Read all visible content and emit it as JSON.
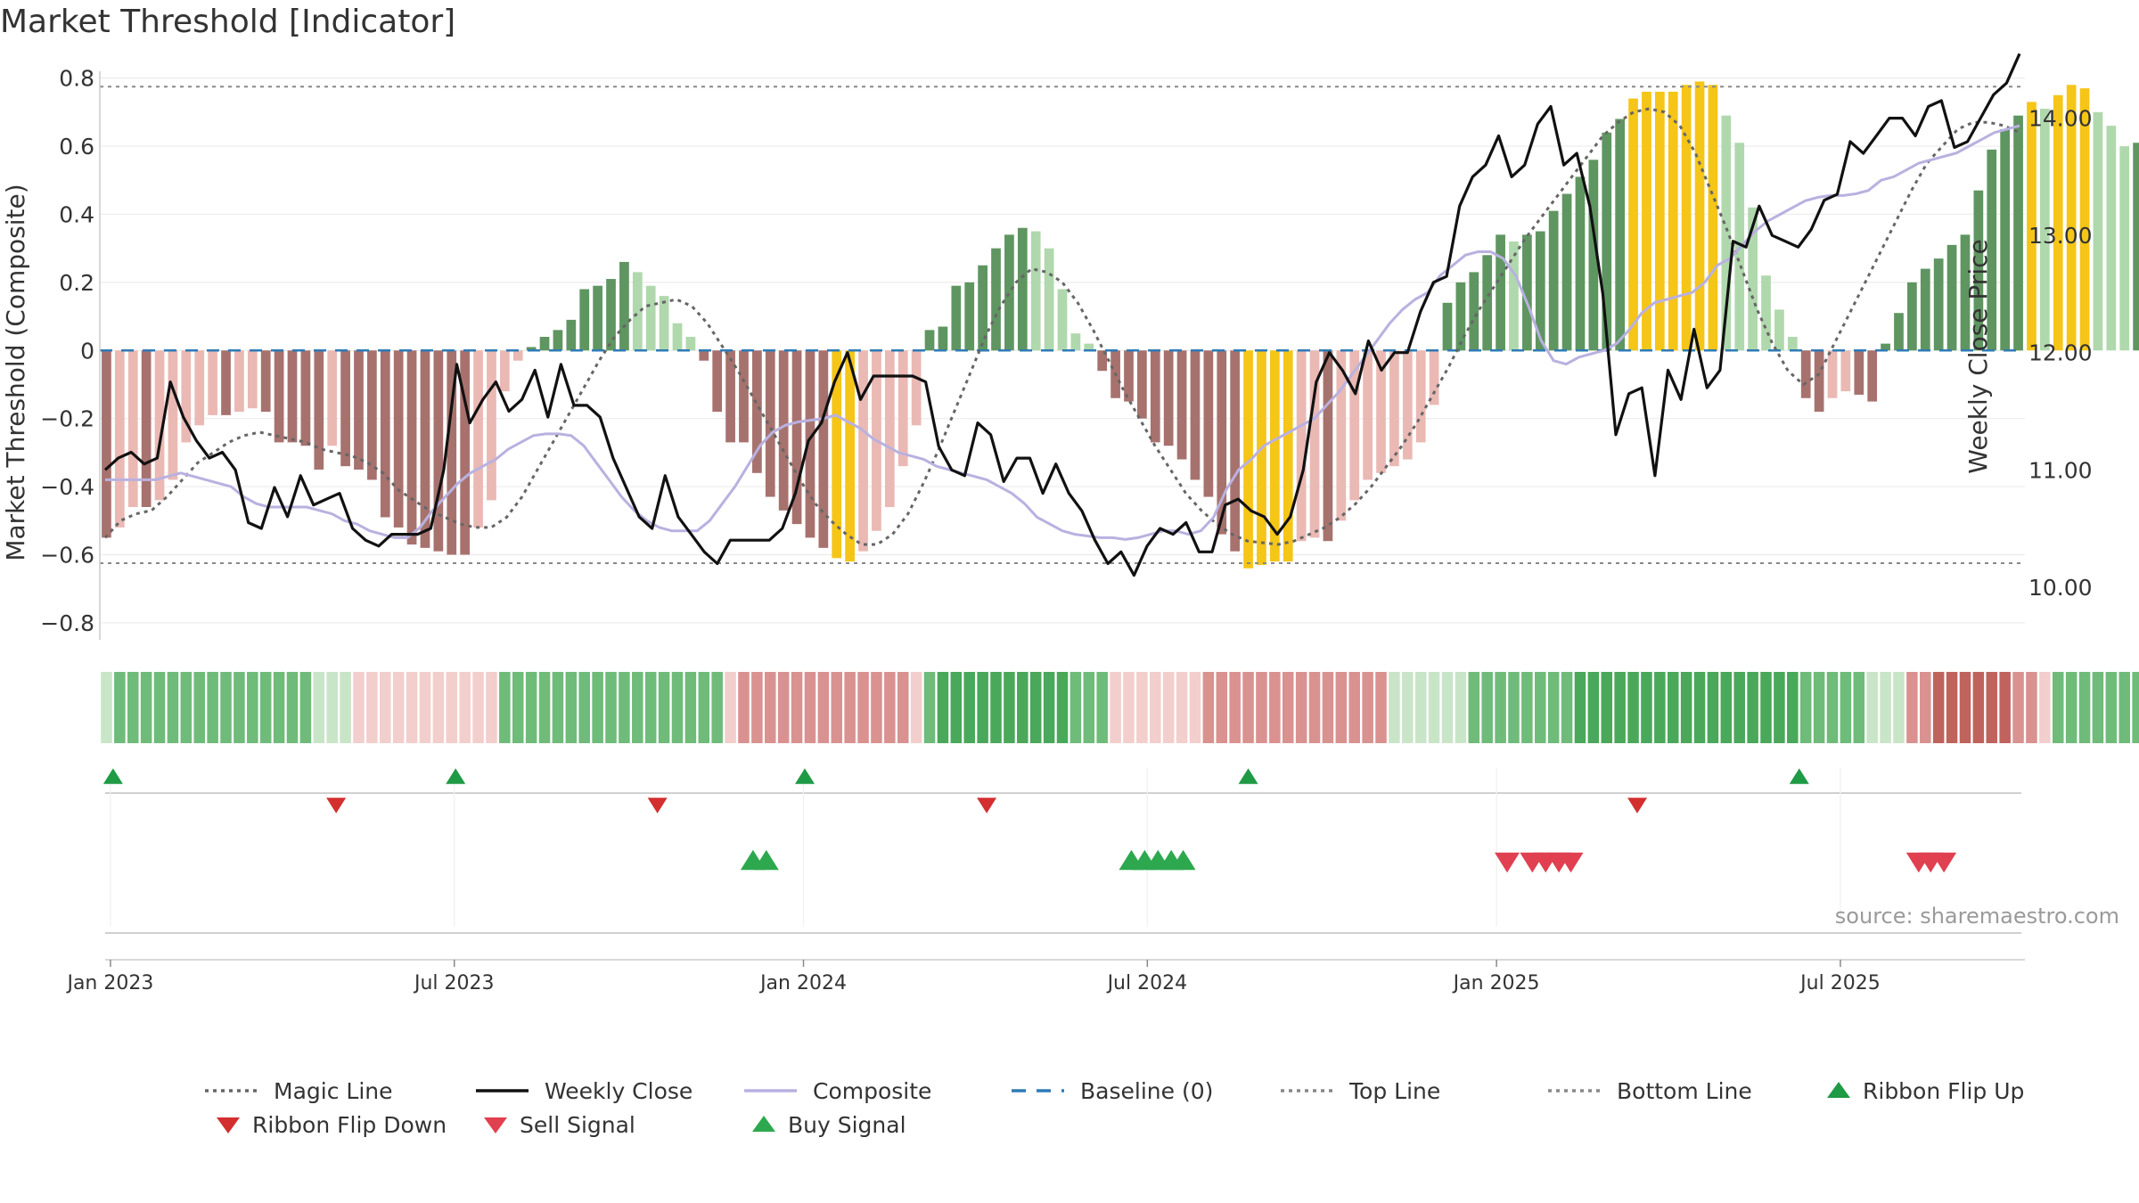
{
  "chart_data": {
    "type": "line",
    "title": "Market Threshold [Indicator]",
    "ylabel_left": "Market Threshold (Composite)",
    "ylabel_right": "Weekly Close Price",
    "ylim_left": [
      -0.85,
      0.82
    ],
    "ylim_right": [
      9.55,
      14.4
    ],
    "yticks_left": [
      {
        "v": 0.8,
        "label": "0.8"
      },
      {
        "v": 0.6,
        "label": "0.6"
      },
      {
        "v": 0.4,
        "label": "0.4"
      },
      {
        "v": 0.2,
        "label": "0.2"
      },
      {
        "v": 0,
        "label": "0"
      },
      {
        "v": -0.2,
        "label": "−0.2"
      },
      {
        "v": -0.4,
        "label": "−0.4"
      },
      {
        "v": -0.6,
        "label": "−0.6"
      },
      {
        "v": -0.8,
        "label": "−0.8"
      }
    ],
    "yticks_right": [
      {
        "v": 14,
        "label": "14.00"
      },
      {
        "v": 13,
        "label": "13.00"
      },
      {
        "v": 12,
        "label": "12.00"
      },
      {
        "v": 11,
        "label": "11.00"
      },
      {
        "v": 10,
        "label": "10.00"
      }
    ],
    "xticks": [
      {
        "w": 0.3,
        "label": "Jan 2023"
      },
      {
        "w": 26.2,
        "label": "Jul 2023"
      },
      {
        "w": 52.5,
        "label": "Jan 2024"
      },
      {
        "w": 78.4,
        "label": "Jul 2024"
      },
      {
        "w": 104.7,
        "label": "Jan 2025"
      },
      {
        "w": 130.6,
        "label": "Jul 2025"
      }
    ],
    "top_line": 0.775,
    "bottom_line": -0.625,
    "source": "source: sharemaestro.com",
    "weeks": 145,
    "composite_bars": [
      -0.55,
      -0.52,
      -0.46,
      -0.46,
      -0.44,
      -0.38,
      -0.27,
      -0.22,
      -0.19,
      -0.19,
      -0.18,
      -0.17,
      -0.18,
      -0.27,
      -0.27,
      -0.28,
      -0.35,
      -0.28,
      -0.34,
      -0.35,
      -0.38,
      -0.49,
      -0.52,
      -0.57,
      -0.58,
      -0.59,
      -0.6,
      -0.6,
      -0.52,
      -0.44,
      -0.12,
      -0.03,
      0.01,
      0.04,
      0.06,
      0.09,
      0.18,
      0.19,
      0.21,
      0.26,
      0.23,
      0.19,
      0.16,
      0.08,
      0.04,
      -0.03,
      -0.18,
      -0.27,
      -0.27,
      -0.36,
      -0.43,
      -0.47,
      -0.51,
      -0.55,
      -0.58,
      -0.61,
      -0.62,
      -0.59,
      -0.53,
      -0.46,
      -0.34,
      -0.22,
      0.06,
      0.07,
      0.19,
      0.2,
      0.25,
      0.3,
      0.34,
      0.36,
      0.35,
      0.3,
      0.18,
      0.05,
      0.02,
      -0.06,
      -0.14,
      -0.15,
      -0.2,
      -0.27,
      -0.28,
      -0.32,
      -0.38,
      -0.43,
      -0.54,
      -0.59,
      -0.64,
      -0.63,
      -0.62,
      -0.62,
      -0.56,
      -0.55,
      -0.56,
      -0.5,
      -0.44,
      -0.38,
      -0.36,
      -0.34,
      -0.32,
      -0.27,
      -0.16,
      0.14,
      0.2,
      0.23,
      0.28,
      0.34,
      0.32,
      0.34,
      0.35,
      0.41,
      0.46,
      0.51,
      0.56,
      0.64,
      0.68,
      0.74,
      0.76,
      0.76,
      0.76,
      0.78,
      0.79,
      0.78,
      0.69,
      0.61,
      0.42,
      0.22,
      0.12,
      0.04,
      -0.14,
      -0.18,
      -0.14,
      -0.12,
      -0.13,
      -0.15,
      0.02,
      0.11,
      0.2,
      0.24,
      0.27,
      0.31,
      0.34,
      0.47,
      0.59,
      0.65,
      0.69,
      0.73,
      0.71,
      0.75,
      0.78,
      0.77,
      0.7,
      0.66,
      0.6,
      0.61,
      0.61
    ],
    "ribbon": [
      1,
      2,
      2,
      2,
      2,
      2,
      2,
      2,
      2,
      2,
      2,
      2,
      2,
      2,
      2,
      2,
      1,
      1,
      1,
      -1,
      -1,
      -1,
      -1,
      -1,
      -1,
      -1,
      -1,
      -1,
      -1,
      -1,
      2,
      2,
      2,
      2,
      2,
      2,
      2,
      2,
      2,
      2,
      2,
      2,
      2,
      2,
      2,
      2,
      2,
      -1,
      -2,
      -2,
      -2,
      -2,
      -2,
      -2,
      -2,
      -2,
      -2,
      -2,
      -2,
      -2,
      -2,
      -1,
      2,
      3,
      3,
      3,
      3,
      3,
      3,
      3,
      3,
      3,
      3,
      2,
      2,
      2,
      -1,
      -1,
      -1,
      -1,
      -1,
      -1,
      -1,
      -2,
      -2,
      -2,
      -2,
      -2,
      -2,
      -2,
      -2,
      -2,
      -2,
      -2,
      -2,
      -2,
      -2,
      1,
      1,
      1,
      1,
      1,
      1,
      2,
      2,
      2,
      2,
      2,
      2,
      2,
      2,
      3,
      3,
      3,
      3,
      3,
      3,
      3,
      3,
      3,
      3,
      3,
      3,
      3,
      3,
      3,
      3,
      3,
      2,
      2,
      2,
      2,
      2,
      1,
      1,
      1,
      -2,
      -2,
      -3,
      -3,
      -3,
      -3,
      -3,
      -3,
      -2,
      -2,
      -1,
      2,
      2,
      2,
      2,
      2,
      2,
      2,
      2,
      2,
      2,
      2,
      2,
      2,
      2,
      2,
      2,
      2,
      2,
      2,
      1,
      1,
      1,
      1,
      1,
      1
    ],
    "series": [
      {
        "name": "Weekly Close",
        "values": [
          11.0,
          11.1,
          11.15,
          11.05,
          11.1,
          11.75,
          11.45,
          11.25,
          11.1,
          11.15,
          11.0,
          10.55,
          10.5,
          10.85,
          10.6,
          10.95,
          10.7,
          10.75,
          10.8,
          10.5,
          10.4,
          10.35,
          10.45,
          10.45,
          10.45,
          10.5,
          11.0,
          11.9,
          11.4,
          11.6,
          11.75,
          11.5,
          11.6,
          11.85,
          11.45,
          11.9,
          11.55,
          11.55,
          11.45,
          11.1,
          10.85,
          10.6,
          10.5,
          10.95,
          10.6,
          10.45,
          10.3,
          10.2,
          10.4,
          10.4,
          10.4,
          10.4,
          10.5,
          10.8,
          11.25,
          11.4,
          11.75,
          12.0,
          11.6,
          11.8,
          11.8,
          11.8,
          11.8,
          11.75,
          11.2,
          11.0,
          10.95,
          11.4,
          11.3,
          10.9,
          11.1,
          11.1,
          10.8,
          11.05,
          10.8,
          10.65,
          10.4,
          10.2,
          10.3,
          10.1,
          10.35,
          10.5,
          10.45,
          10.55,
          10.3,
          10.3,
          10.7,
          10.75,
          10.65,
          10.6,
          10.45,
          10.6,
          11.0,
          11.75,
          12.0,
          11.85,
          11.65,
          12.1,
          11.85,
          12.0,
          12.0,
          12.35,
          12.6,
          12.65,
          13.25,
          13.5,
          13.6,
          13.85,
          13.5,
          13.6,
          13.95,
          14.1,
          13.6,
          13.7,
          13.25,
          12.5,
          11.3,
          11.65,
          11.7,
          10.95,
          11.85,
          11.6,
          12.2,
          11.7,
          11.85,
          12.95,
          12.9,
          13.25,
          13.0,
          12.95,
          12.9,
          13.05,
          13.3,
          13.35,
          13.8,
          13.7,
          13.85,
          14.0,
          14.0,
          13.85,
          14.1,
          14.15,
          13.75,
          13.8,
          14.0,
          14.2,
          14.3,
          14.55
        ],
        "color": "#111111"
      },
      {
        "name": "Composite",
        "values": [
          -0.38,
          -0.38,
          -0.38,
          -0.38,
          -0.38,
          -0.37,
          -0.36,
          -0.37,
          -0.38,
          -0.39,
          -0.4,
          -0.43,
          -0.45,
          -0.46,
          -0.46,
          -0.46,
          -0.46,
          -0.47,
          -0.48,
          -0.5,
          -0.51,
          -0.53,
          -0.54,
          -0.55,
          -0.55,
          -0.52,
          -0.47,
          -0.43,
          -0.39,
          -0.36,
          -0.34,
          -0.32,
          -0.29,
          -0.27,
          -0.25,
          -0.245,
          -0.245,
          -0.25,
          -0.28,
          -0.33,
          -0.38,
          -0.43,
          -0.47,
          -0.5,
          -0.52,
          -0.53,
          -0.53,
          -0.53,
          -0.5,
          -0.45,
          -0.4,
          -0.34,
          -0.28,
          -0.24,
          -0.22,
          -0.21,
          -0.205,
          -0.2,
          -0.19,
          -0.21,
          -0.23,
          -0.26,
          -0.28,
          -0.3,
          -0.31,
          -0.32,
          -0.34,
          -0.35,
          -0.36,
          -0.37,
          -0.38,
          -0.4,
          -0.42,
          -0.45,
          -0.49,
          -0.51,
          -0.53,
          -0.54,
          -0.545,
          -0.55,
          -0.55,
          -0.555,
          -0.55,
          -0.54,
          -0.53,
          -0.53,
          -0.54,
          -0.53,
          -0.49,
          -0.41,
          -0.35,
          -0.32,
          -0.28,
          -0.26,
          -0.24,
          -0.22,
          -0.2,
          -0.16,
          -0.12,
          -0.07,
          -0.02,
          0.03,
          0.08,
          0.12,
          0.15,
          0.17,
          0.22,
          0.25,
          0.28,
          0.29,
          0.29,
          0.27,
          0.22,
          0.13,
          0.03,
          -0.03,
          -0.04,
          -0.02,
          -0.01,
          0.0,
          0.02,
          0.06,
          0.11,
          0.14,
          0.15,
          0.16,
          0.17,
          0.2,
          0.25,
          0.27,
          0.31,
          0.35,
          0.38,
          0.4,
          0.42,
          0.44,
          0.45,
          0.455,
          0.455,
          0.46,
          0.47,
          0.5,
          0.51,
          0.53,
          0.55,
          0.56,
          0.57,
          0.58,
          0.6,
          0.62,
          0.64,
          0.65,
          0.66
        ],
        "color": "#b9b1e0"
      },
      {
        "name": "Magic Line",
        "values": [
          -0.55,
          -0.5,
          -0.48,
          -0.47,
          -0.43,
          -0.38,
          -0.33,
          -0.3,
          -0.27,
          -0.25,
          -0.24,
          -0.25,
          -0.26,
          -0.27,
          -0.29,
          -0.3,
          -0.31,
          -0.33,
          -0.36,
          -0.41,
          -0.44,
          -0.47,
          -0.49,
          -0.51,
          -0.52,
          -0.52,
          -0.49,
          -0.43,
          -0.35,
          -0.27,
          -0.19,
          -0.11,
          -0.03,
          0.04,
          0.09,
          0.13,
          0.14,
          0.15,
          0.13,
          0.08,
          0.01,
          -0.06,
          -0.14,
          -0.22,
          -0.3,
          -0.38,
          -0.45,
          -0.5,
          -0.54,
          -0.57,
          -0.57,
          -0.54,
          -0.48,
          -0.39,
          -0.29,
          -0.18,
          -0.07,
          0.04,
          0.13,
          0.2,
          0.24,
          0.23,
          0.2,
          0.14,
          0.06,
          -0.03,
          -0.12,
          -0.2,
          -0.28,
          -0.35,
          -0.42,
          -0.47,
          -0.51,
          -0.54,
          -0.56,
          -0.565,
          -0.57,
          -0.56,
          -0.54,
          -0.52,
          -0.49,
          -0.45,
          -0.4,
          -0.34,
          -0.28,
          -0.21,
          -0.13,
          -0.05,
          0.04,
          0.12,
          0.19,
          0.26,
          0.33,
          0.39,
          0.45,
          0.51,
          0.57,
          0.63,
          0.67,
          0.7,
          0.71,
          0.7,
          0.66,
          0.58,
          0.47,
          0.36,
          0.24,
          0.12,
          0.02,
          -0.06,
          -0.1,
          -0.07,
          0.02,
          0.11,
          0.2,
          0.29,
          0.38,
          0.47,
          0.55,
          0.6,
          0.65,
          0.67,
          0.67,
          0.66,
          0.64
        ],
        "color": "#666666"
      }
    ],
    "ribbon_flip_up": [
      0.5,
      26.3,
      52.6,
      86.0,
      127.5
    ],
    "ribbon_flip_down": [
      17.3,
      41.5,
      66.3,
      115.3
    ],
    "buy_signals": [
      48.7,
      49.7,
      77.2,
      78.2,
      79.2,
      80.2,
      81.1
    ],
    "sell_signals": [
      105.5,
      107.4,
      108.4,
      109.4,
      110.3,
      136.5,
      137.4,
      138.4
    ],
    "legend": [
      {
        "label": "Magic Line",
        "kind": "dotted",
        "color": "#666666"
      },
      {
        "label": "Weekly Close",
        "kind": "solid",
        "color": "#111111"
      },
      {
        "label": "Composite",
        "kind": "solid",
        "color": "#b9b1e0"
      },
      {
        "label": "Baseline (0)",
        "kind": "dashed",
        "color": "#2e7bb6"
      },
      {
        "label": "Top Line",
        "kind": "dotted",
        "color": "#888888"
      },
      {
        "label": "Bottom Line",
        "kind": "dotted",
        "color": "#888888"
      },
      {
        "label": "Ribbon Flip Up",
        "kind": "tri-up",
        "color": "#1f9a45"
      },
      {
        "label": "Ribbon Flip Down",
        "kind": "tri-down",
        "color": "#d32f2f"
      },
      {
        "label": "Sell Signal",
        "kind": "tri-down",
        "color": "#e04050"
      },
      {
        "label": "Buy Signal",
        "kind": "tri-up",
        "color": "#2ea84f"
      }
    ]
  }
}
